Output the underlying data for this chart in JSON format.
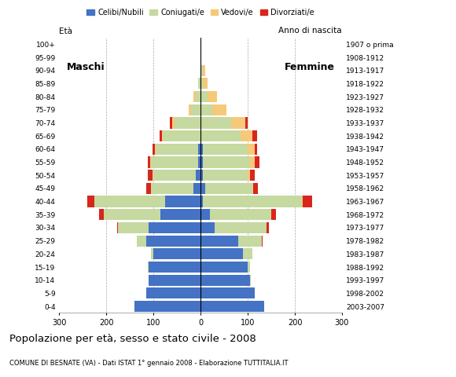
{
  "age_groups": [
    "0-4",
    "5-9",
    "10-14",
    "15-19",
    "20-24",
    "25-29",
    "30-34",
    "35-39",
    "40-44",
    "45-49",
    "50-54",
    "55-59",
    "60-64",
    "65-69",
    "70-74",
    "75-79",
    "80-84",
    "85-89",
    "90-94",
    "95-99",
    "100+"
  ],
  "birth_years": [
    "2003-2007",
    "1998-2002",
    "1993-1997",
    "1988-1992",
    "1983-1987",
    "1978-1982",
    "1973-1977",
    "1968-1972",
    "1963-1967",
    "1958-1962",
    "1953-1957",
    "1948-1952",
    "1943-1947",
    "1938-1942",
    "1933-1937",
    "1928-1932",
    "1923-1927",
    "1918-1922",
    "1913-1917",
    "1908-1912",
    "1907 o prima"
  ],
  "males": {
    "celibe": [
      140,
      115,
      110,
      110,
      100,
      115,
      110,
      85,
      75,
      15,
      10,
      5,
      5,
      0,
      0,
      0,
      0,
      0,
      0,
      0,
      0
    ],
    "coniugato": [
      0,
      0,
      1,
      2,
      5,
      20,
      65,
      120,
      150,
      90,
      90,
      100,
      90,
      80,
      55,
      20,
      10,
      5,
      0,
      0,
      0
    ],
    "vedovo": [
      0,
      0,
      0,
      0,
      0,
      0,
      0,
      0,
      0,
      0,
      2,
      2,
      2,
      2,
      5,
      5,
      5,
      0,
      0,
      0,
      0
    ],
    "divorziato": [
      0,
      0,
      0,
      0,
      0,
      0,
      2,
      10,
      15,
      10,
      10,
      5,
      5,
      5,
      5,
      0,
      0,
      0,
      0,
      0,
      0
    ]
  },
  "females": {
    "nubile": [
      135,
      115,
      105,
      100,
      90,
      80,
      30,
      20,
      5,
      10,
      5,
      5,
      5,
      0,
      0,
      0,
      0,
      0,
      2,
      0,
      0
    ],
    "coniugata": [
      0,
      0,
      2,
      5,
      20,
      50,
      110,
      130,
      210,
      100,
      95,
      100,
      95,
      85,
      65,
      25,
      15,
      5,
      2,
      0,
      0
    ],
    "vedova": [
      0,
      0,
      0,
      0,
      0,
      0,
      0,
      0,
      2,
      2,
      5,
      10,
      15,
      25,
      30,
      30,
      20,
      10,
      5,
      0,
      0
    ],
    "divorziata": [
      0,
      0,
      0,
      0,
      0,
      2,
      5,
      10,
      20,
      10,
      10,
      10,
      5,
      10,
      5,
      0,
      0,
      0,
      0,
      0,
      0
    ]
  },
  "colors": {
    "celibe": "#4472c4",
    "coniugato": "#c5d9a0",
    "vedovo": "#f5c97a",
    "divorziato": "#d9261c"
  },
  "xlim": 300,
  "title": "Popolazione per età, sesso e stato civile - 2008",
  "subtitle": "COMUNE DI BESNATE (VA) - Dati ISTAT 1° gennaio 2008 - Elaborazione TUTTITALIA.IT",
  "legend_labels": [
    "Celibi/Nubili",
    "Coniugati/e",
    "Vedovi/e",
    "Divorziati/e"
  ],
  "label_maschi": "Maschi",
  "label_femmine": "Femmine",
  "eta_label": "Età",
  "anno_label": "Anno di nascita"
}
